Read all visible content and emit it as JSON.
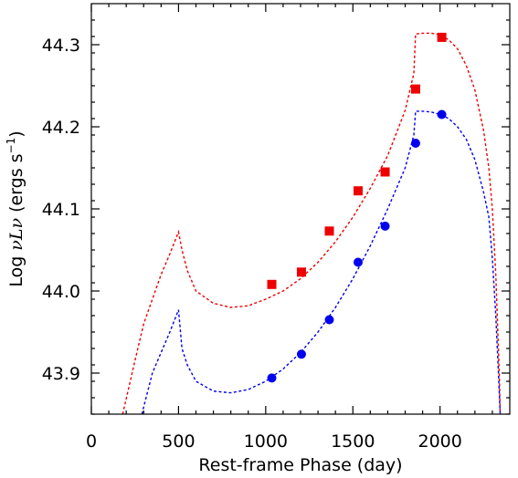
{
  "chart_data": {
    "type": "scatter",
    "title": "",
    "xlabel": "Rest-frame Phase (day)",
    "ylabel_parts": [
      "Log ",
      "νLν",
      " (ergs s",
      "−1",
      ")"
    ],
    "xlim": [
      0,
      2400
    ],
    "ylim": [
      43.85,
      44.35
    ],
    "xticks": [
      0,
      500,
      1000,
      1500,
      2000
    ],
    "xticklabels": [
      "0",
      "500",
      "1000",
      "1500",
      "2000"
    ],
    "yticks": [
      43.9,
      44.0,
      44.1,
      44.2,
      44.3
    ],
    "yticklabels": [
      "43.9",
      "44.0",
      "44.1",
      "44.2",
      "44.3"
    ],
    "grid": false,
    "series": [
      {
        "marker": "square",
        "color": "#ee0000",
        "x": [
          1035,
          1205,
          1365,
          1530,
          1685,
          1860,
          2010
        ],
        "y": [
          44.008,
          44.023,
          44.073,
          44.122,
          44.145,
          44.246,
          44.309
        ]
      },
      {
        "marker": "circle",
        "color": "#0000ee",
        "x": [
          1035,
          1205,
          1365,
          1530,
          1685,
          1860,
          2010
        ],
        "y": [
          43.894,
          43.923,
          43.965,
          44.035,
          44.079,
          44.18,
          44.215
        ]
      }
    ],
    "models": [
      {
        "color": "#ee0000",
        "x": [
          180,
          250,
          300,
          350,
          400,
          450,
          500,
          520,
          550,
          600,
          700,
          800,
          900,
          1000,
          1100,
          1200,
          1300,
          1400,
          1500,
          1600,
          1700,
          1800,
          1850,
          1860,
          1900,
          1950,
          2000,
          2050,
          2100,
          2150,
          2200,
          2250,
          2280,
          2300,
          2320,
          2340,
          2345
        ],
        "y": [
          43.85,
          43.915,
          43.96,
          43.99,
          44.02,
          44.045,
          44.072,
          44.05,
          44.025,
          44.0,
          43.985,
          43.98,
          43.982,
          43.99,
          44.0,
          44.015,
          44.035,
          44.06,
          44.09,
          44.125,
          44.165,
          44.22,
          44.265,
          44.313,
          44.314,
          44.314,
          44.312,
          44.306,
          44.295,
          44.275,
          44.245,
          44.195,
          44.15,
          44.1,
          44.02,
          43.9,
          43.85
        ]
      },
      {
        "color": "#0000ee",
        "x": [
          290,
          350,
          400,
          450,
          500,
          520,
          550,
          600,
          700,
          800,
          900,
          1000,
          1100,
          1200,
          1300,
          1400,
          1500,
          1600,
          1700,
          1800,
          1850,
          1860,
          1900,
          1950,
          2000,
          2050,
          2100,
          2150,
          2200,
          2250,
          2280,
          2300,
          2320,
          2335,
          2345
        ],
        "y": [
          43.85,
          43.9,
          43.925,
          43.95,
          43.977,
          43.93,
          43.91,
          43.89,
          43.878,
          43.876,
          43.88,
          43.89,
          43.905,
          43.925,
          43.95,
          43.98,
          44.015,
          44.055,
          44.1,
          44.15,
          44.19,
          44.219,
          44.219,
          44.218,
          44.215,
          44.21,
          44.2,
          44.185,
          44.16,
          44.12,
          44.09,
          44.04,
          43.97,
          43.9,
          43.85
        ]
      }
    ]
  }
}
